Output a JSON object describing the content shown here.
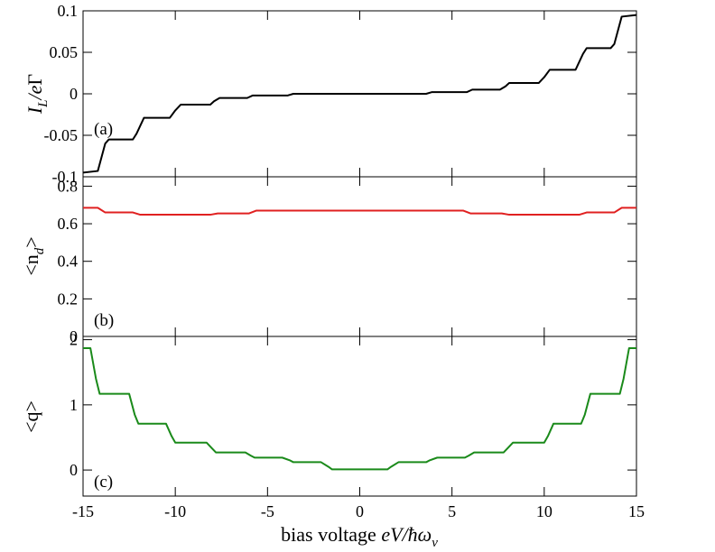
{
  "chart_data": [
    {
      "type": "line",
      "panel_label": "(a)",
      "ylabel": {
        "main": "I",
        "sub": "L",
        "rest": "/e",
        "greek": "Γ"
      },
      "xlim": [
        -15,
        15
      ],
      "ylim": [
        -0.1,
        0.1
      ],
      "yticks": [
        {
          "value": -0.1,
          "label": "-0.1"
        },
        {
          "value": -0.05,
          "label": "-0.05"
        },
        {
          "value": 0,
          "label": "0"
        },
        {
          "value": 0.05,
          "label": "0.05"
        },
        {
          "value": 0.1,
          "label": "0.1"
        }
      ],
      "series": [
        {
          "name": "current",
          "color": "#000000",
          "x": [
            -15,
            -14.2,
            -13.8,
            -13.6,
            -12.3,
            -12.1,
            -11.7,
            -10.3,
            -10.0,
            -9.7,
            -8.1,
            -7.9,
            -7.6,
            -6.1,
            -5.8,
            -3.9,
            -3.6,
            3.6,
            3.9,
            5.8,
            6.1,
            7.6,
            7.9,
            8.1,
            9.7,
            10.0,
            10.3,
            11.7,
            12.1,
            12.3,
            13.6,
            13.8,
            14.2,
            15
          ],
          "y": [
            -0.095,
            -0.093,
            -0.06,
            -0.055,
            -0.055,
            -0.048,
            -0.029,
            -0.029,
            -0.02,
            -0.013,
            -0.013,
            -0.009,
            -0.005,
            -0.005,
            -0.002,
            -0.002,
            0.0,
            0.0,
            0.002,
            0.002,
            0.005,
            0.005,
            0.009,
            0.013,
            0.013,
            0.02,
            0.029,
            0.029,
            0.048,
            0.055,
            0.055,
            0.06,
            0.093,
            0.095
          ]
        }
      ]
    },
    {
      "type": "line",
      "panel_label": "(b)",
      "ylabel": {
        "text": "<n",
        "sub": "d",
        "close": ">"
      },
      "xlim": [
        -15,
        15
      ],
      "ylim": [
        0,
        0.85
      ],
      "yticks": [
        {
          "value": 0,
          "label": "0"
        },
        {
          "value": 0.2,
          "label": "0.2"
        },
        {
          "value": 0.4,
          "label": "0.4"
        },
        {
          "value": 0.6,
          "label": "0.6"
        },
        {
          "value": 0.8,
          "label": "0.8"
        }
      ],
      "series": [
        {
          "name": "occupation",
          "color": "#e02020",
          "x": [
            -15,
            -14.2,
            -13.8,
            -12.3,
            -11.9,
            -8.1,
            -7.7,
            -6.0,
            -5.6,
            5.6,
            6.0,
            7.7,
            8.1,
            11.9,
            12.3,
            13.8,
            14.2,
            15
          ],
          "y": [
            0.685,
            0.685,
            0.66,
            0.66,
            0.648,
            0.648,
            0.655,
            0.655,
            0.67,
            0.67,
            0.655,
            0.655,
            0.648,
            0.648,
            0.66,
            0.66,
            0.685,
            0.685
          ]
        }
      ]
    },
    {
      "type": "line",
      "panel_label": "(c)",
      "xlabel": {
        "text": "bias voltage ",
        "italic": "eV/ħω",
        "sub": "ν"
      },
      "ylabel": {
        "text": "<q>"
      },
      "xlim": [
        -15,
        15
      ],
      "ylim": [
        -0.4,
        2.05
      ],
      "xticks": [
        {
          "value": -15,
          "label": "-15"
        },
        {
          "value": -10,
          "label": "-10"
        },
        {
          "value": -5,
          "label": "-5"
        },
        {
          "value": 0,
          "label": "0"
        },
        {
          "value": 5,
          "label": "5"
        },
        {
          "value": 10,
          "label": "10"
        },
        {
          "value": 15,
          "label": "15"
        }
      ],
      "yticks": [
        {
          "value": 0,
          "label": "0"
        },
        {
          "value": 1,
          "label": "1"
        },
        {
          "value": 2,
          "label": "2"
        }
      ],
      "series": [
        {
          "name": "displacement",
          "color": "#1a8a1a",
          "x": [
            -15,
            -14.6,
            -14.3,
            -14.1,
            -12.5,
            -12.2,
            -12.0,
            -10.5,
            -10.2,
            -10.0,
            -8.3,
            -8.0,
            -7.8,
            -6.2,
            -5.9,
            -5.7,
            -4.2,
            -3.8,
            -3.6,
            -2.1,
            -1.7,
            -1.5,
            1.5,
            1.7,
            2.1,
            3.6,
            3.8,
            4.2,
            5.7,
            5.9,
            6.2,
            7.8,
            8.0,
            8.3,
            10.0,
            10.2,
            10.5,
            12.0,
            12.2,
            12.5,
            14.1,
            14.3,
            14.6,
            15
          ],
          "y": [
            1.87,
            1.87,
            1.4,
            1.17,
            1.17,
            0.85,
            0.71,
            0.71,
            0.52,
            0.42,
            0.42,
            0.33,
            0.27,
            0.27,
            0.22,
            0.19,
            0.19,
            0.15,
            0.12,
            0.12,
            0.05,
            0.01,
            0.01,
            0.05,
            0.12,
            0.12,
            0.15,
            0.19,
            0.19,
            0.22,
            0.27,
            0.27,
            0.33,
            0.42,
            0.42,
            0.52,
            0.71,
            0.71,
            0.85,
            1.17,
            1.17,
            1.4,
            1.87,
            1.87
          ]
        }
      ]
    }
  ]
}
